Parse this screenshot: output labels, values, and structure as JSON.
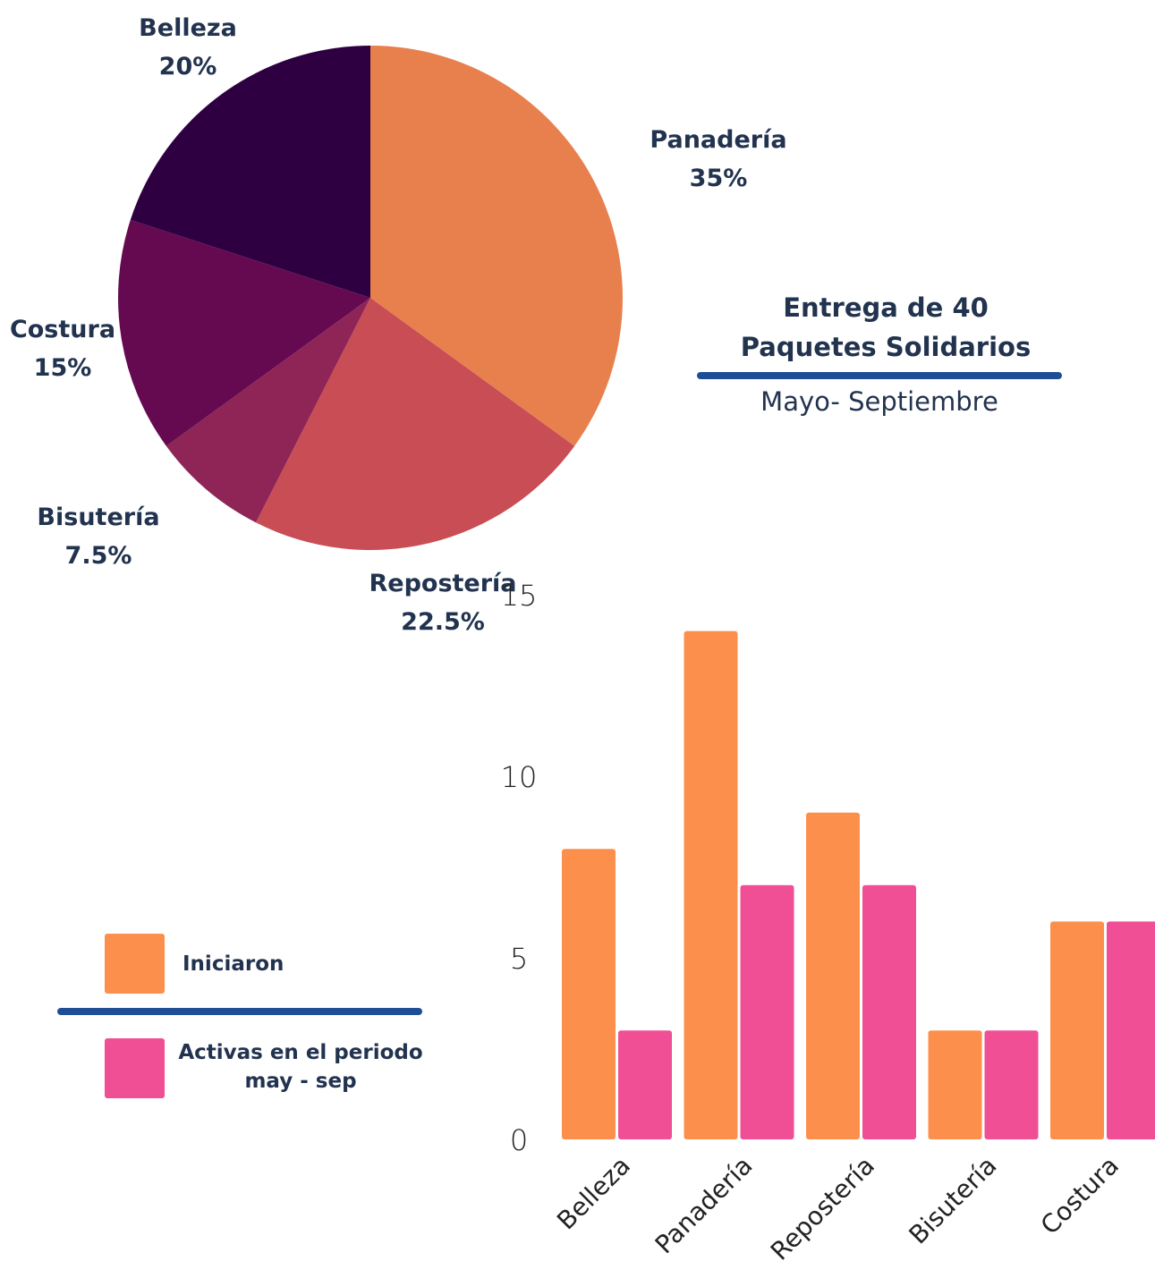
{
  "chart_data": [
    {
      "type": "pie",
      "title": "Entrega de 40 Paquetes Solidarios",
      "subtitle": "Mayo- Septiembre",
      "categories": [
        "Panadería",
        "Repostería",
        "Bisutería",
        "Costura",
        "Belleza"
      ],
      "values": [
        35,
        22.5,
        7.5,
        15,
        20
      ],
      "value_labels": [
        "35%",
        "22.5%",
        "7.5%",
        "15%",
        "20%"
      ],
      "colors": [
        "#e8804e",
        "#c94d55",
        "#8e2556",
        "#650a50",
        "#2f0041"
      ]
    },
    {
      "type": "bar",
      "categories": [
        "Belleza",
        "Panadería",
        "Repostería",
        "Bisutería",
        "Costura"
      ],
      "series": [
        {
          "name": "Iniciaron",
          "color": "#fc8f4c",
          "values": [
            8,
            14,
            9,
            3,
            6
          ]
        },
        {
          "name": "Activas en el periodo may - sep",
          "color": "#f04e95",
          "values": [
            3,
            7,
            7,
            3,
            6
          ]
        }
      ],
      "ylim": [
        0,
        15
      ],
      "yticks": [
        0,
        5,
        10,
        15
      ],
      "grid": false
    }
  ]
}
